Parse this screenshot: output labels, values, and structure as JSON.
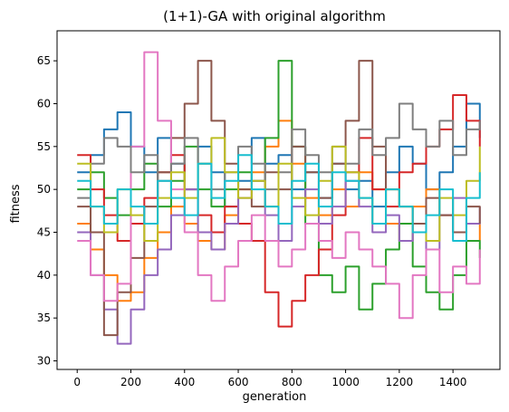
{
  "chart_data": {
    "type": "line",
    "title": "(1+1)-GA with original algorithm",
    "xlabel": "generation",
    "ylabel": "fitness",
    "xlim": [
      -75,
      1575
    ],
    "ylim": [
      29,
      68.5
    ],
    "xticks": [
      0,
      200,
      400,
      600,
      800,
      1000,
      1200,
      1400
    ],
    "yticks": [
      30,
      35,
      40,
      45,
      50,
      55,
      60,
      65
    ],
    "grid": false,
    "legend": "none",
    "series": [
      {
        "color": "#1f77b4",
        "x": [
          0,
          50,
          100,
          150,
          200,
          250,
          300,
          350,
          400,
          450,
          500,
          550,
          600,
          650,
          700,
          750,
          800,
          850,
          900,
          950,
          1000,
          1050,
          1100,
          1150,
          1200,
          1250,
          1300,
          1350,
          1400,
          1450,
          1500
        ],
        "values": [
          52,
          54,
          57,
          59,
          55,
          52,
          56,
          53,
          50,
          55,
          52,
          48,
          51,
          56,
          53,
          54,
          50,
          52,
          49,
          53,
          50,
          51,
          48,
          52,
          55,
          53,
          50,
          52,
          55,
          60,
          56
        ]
      },
      {
        "color": "#ff7f0e",
        "x": [
          0,
          50,
          100,
          150,
          200,
          250,
          300,
          350,
          400,
          450,
          500,
          550,
          600,
          650,
          700,
          750,
          800,
          850,
          900,
          950,
          1000,
          1050,
          1100,
          1150,
          1200,
          1250,
          1300,
          1350,
          1400,
          1450,
          1500
        ],
        "values": [
          46,
          43,
          40,
          37,
          38,
          42,
          45,
          48,
          46,
          44,
          43,
          47,
          50,
          52,
          55,
          58,
          53,
          49,
          47,
          50,
          48,
          52,
          50,
          46,
          44,
          48,
          50,
          47,
          45,
          46,
          44
        ]
      },
      {
        "color": "#2ca02c",
        "x": [
          0,
          50,
          100,
          150,
          200,
          250,
          300,
          350,
          400,
          450,
          500,
          550,
          600,
          650,
          700,
          750,
          800,
          850,
          900,
          950,
          1000,
          1050,
          1100,
          1150,
          1200,
          1250,
          1300,
          1350,
          1400,
          1450,
          1500
        ],
        "values": [
          50,
          52,
          49,
          47,
          50,
          53,
          48,
          51,
          55,
          50,
          48,
          50,
          52,
          51,
          56,
          65,
          55,
          46,
          40,
          38,
          41,
          36,
          39,
          43,
          46,
          41,
          38,
          36,
          40,
          44,
          42
        ]
      },
      {
        "color": "#d62728",
        "x": [
          0,
          50,
          100,
          150,
          200,
          250,
          300,
          350,
          400,
          450,
          500,
          550,
          600,
          650,
          700,
          750,
          800,
          850,
          900,
          950,
          1000,
          1050,
          1100,
          1150,
          1200,
          1250,
          1300,
          1350,
          1400,
          1450,
          1500
        ],
        "values": [
          54,
          50,
          47,
          44,
          46,
          49,
          52,
          54,
          50,
          47,
          45,
          48,
          46,
          44,
          38,
          34,
          37,
          40,
          43,
          47,
          52,
          56,
          50,
          48,
          52,
          53,
          55,
          57,
          61,
          58,
          55
        ]
      },
      {
        "color": "#9467bd",
        "x": [
          0,
          50,
          100,
          150,
          200,
          250,
          300,
          350,
          400,
          450,
          500,
          550,
          600,
          650,
          700,
          750,
          800,
          850,
          900,
          950,
          1000,
          1050,
          1100,
          1150,
          1200,
          1250,
          1300,
          1350,
          1400,
          1450,
          1500
        ],
        "values": [
          45,
          40,
          36,
          32,
          36,
          40,
          43,
          47,
          50,
          45,
          43,
          46,
          49,
          51,
          47,
          44,
          48,
          50,
          46,
          48,
          51,
          48,
          45,
          47,
          44,
          46,
          43,
          47,
          49,
          46,
          48
        ]
      },
      {
        "color": "#8c564b",
        "x": [
          0,
          50,
          100,
          150,
          200,
          250,
          300,
          350,
          400,
          450,
          500,
          550,
          600,
          650,
          700,
          750,
          800,
          850,
          900,
          950,
          1000,
          1050,
          1100,
          1150,
          1200,
          1250,
          1300,
          1350,
          1400,
          1450,
          1500
        ],
        "values": [
          48,
          45,
          33,
          38,
          42,
          48,
          52,
          56,
          60,
          65,
          58,
          53,
          50,
          48,
          52,
          50,
          55,
          52,
          49,
          53,
          58,
          65,
          55,
          50,
          48,
          46,
          49,
          47,
          45,
          48,
          46
        ]
      },
      {
        "color": "#e377c2",
        "x": [
          0,
          50,
          100,
          150,
          200,
          250,
          300,
          350,
          400,
          450,
          500,
          550,
          600,
          650,
          700,
          750,
          800,
          850,
          900,
          950,
          1000,
          1050,
          1100,
          1150,
          1200,
          1250,
          1300,
          1350,
          1400,
          1450,
          1500
        ],
        "values": [
          44,
          40,
          37,
          39,
          55,
          66,
          58,
          50,
          45,
          40,
          37,
          41,
          44,
          47,
          44,
          41,
          43,
          46,
          44,
          42,
          45,
          43,
          41,
          39,
          35,
          40,
          43,
          38,
          41,
          39,
          43
        ]
      },
      {
        "color": "#7f7f7f",
        "x": [
          0,
          50,
          100,
          150,
          200,
          250,
          300,
          350,
          400,
          450,
          500,
          550,
          600,
          650,
          700,
          750,
          800,
          850,
          900,
          950,
          1000,
          1050,
          1100,
          1150,
          1200,
          1250,
          1300,
          1350,
          1400,
          1450,
          1500
        ],
        "values": [
          49,
          53,
          56,
          55,
          52,
          54,
          51,
          53,
          56,
          53,
          50,
          52,
          55,
          53,
          50,
          52,
          57,
          54,
          52,
          55,
          53,
          57,
          54,
          56,
          60,
          57,
          55,
          58,
          54,
          57,
          58
        ]
      },
      {
        "color": "#bcbd22",
        "x": [
          0,
          50,
          100,
          150,
          200,
          250,
          300,
          350,
          400,
          450,
          500,
          550,
          600,
          650,
          700,
          750,
          800,
          850,
          900,
          950,
          1000,
          1050,
          1100,
          1150,
          1200,
          1250,
          1300,
          1350,
          1400,
          1450,
          1500
        ],
        "values": [
          53,
          48,
          45,
          50,
          47,
          44,
          49,
          52,
          49,
          53,
          56,
          52,
          49,
          51,
          48,
          53,
          49,
          47,
          51,
          55,
          52,
          49,
          46,
          50,
          48,
          45,
          44,
          49,
          47,
          51,
          55
        ]
      },
      {
        "color": "#17becf",
        "x": [
          0,
          50,
          100,
          150,
          200,
          250,
          300,
          350,
          400,
          450,
          500,
          550,
          600,
          650,
          700,
          750,
          800,
          850,
          900,
          950,
          1000,
          1050,
          1100,
          1150,
          1200,
          1250,
          1300,
          1350,
          1400,
          1450,
          1500
        ],
        "values": [
          51,
          48,
          46,
          50,
          48,
          46,
          51,
          49,
          47,
          53,
          49,
          51,
          54,
          50,
          48,
          46,
          51,
          53,
          48,
          52,
          51,
          49,
          46,
          50,
          48,
          45,
          47,
          50,
          44,
          49,
          52
        ]
      }
    ]
  }
}
